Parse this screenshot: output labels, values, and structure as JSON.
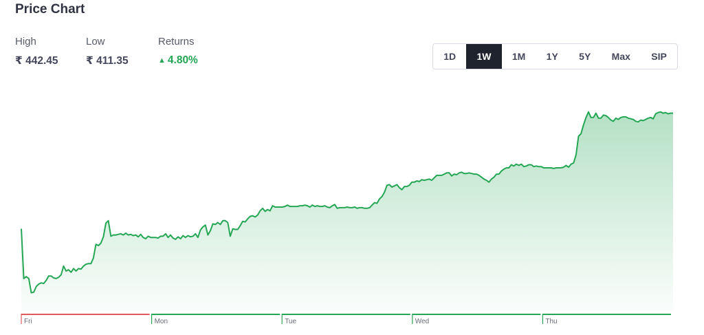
{
  "header": {
    "title": "Price Chart"
  },
  "stats": {
    "high": {
      "label": "High",
      "value": "₹ 442.45"
    },
    "low": {
      "label": "Low",
      "value": "₹ 411.35"
    },
    "returns": {
      "label": "Returns",
      "value": "4.80%",
      "direction_icon": "triangle-up-icon"
    }
  },
  "timeframes": {
    "options": [
      "1D",
      "1W",
      "1M",
      "1Y",
      "5Y",
      "Max",
      "SIP"
    ],
    "selected": "1W"
  },
  "colors": {
    "up": "#24a654",
    "down": "#e05a5a",
    "active_tab_bg": "#1f232d"
  },
  "chart_data": {
    "type": "area",
    "title": "",
    "days": [
      {
        "label": "Fri",
        "trend": "down"
      },
      {
        "label": "Mon",
        "trend": "up"
      },
      {
        "label": "Tue",
        "trend": "up"
      },
      {
        "label": "Wed",
        "trend": "up"
      },
      {
        "label": "Thu",
        "trend": "up"
      }
    ],
    "ylim": [
      411.35,
      442.45
    ],
    "series": [
      {
        "values": [
          421.8,
          413.8,
          414.1,
          413.8,
          411.5,
          411.6,
          412.5,
          412.9,
          413.1,
          413.0,
          413.5,
          414.2,
          414.2,
          413.9,
          413.8,
          414.0,
          414.4,
          415.8,
          415.0,
          415.2,
          414.8,
          415.4,
          415.0,
          415.4,
          415.3,
          415.8,
          416.1,
          416.2,
          416.2,
          417.1,
          419.3,
          419.1,
          419.5,
          420.5,
          422.7,
          423.1,
          420.6,
          420.8,
          420.8,
          420.9,
          421.0,
          420.8,
          421.1,
          420.8,
          420.9,
          420.7,
          420.8,
          420.5,
          420.9,
          420.4,
          420.2,
          420.6,
          420.4,
          420.4,
          420.4,
          420.3,
          420.6,
          420.6,
          421.0,
          420.4,
          420.8,
          420.3,
          420.1,
          420.5,
          420.2,
          420.7,
          420.4,
          420.7,
          420.5,
          420.6,
          421.0,
          420.4,
          421.6,
          422.1,
          422.4,
          420.8,
          421.5,
          422.6,
          422.5,
          422.8,
          422.5,
          423.1,
          423.1,
          422.8,
          420.6,
          421.8,
          421.7,
          421.7,
          422.3,
          423.0,
          422.9,
          423.4,
          423.8,
          423.9,
          423.7,
          424.0,
          424.7,
          425.1,
          424.6,
          424.9,
          424.7,
          425.5,
          425.3,
          425.3,
          425.3,
          425.3,
          425.4,
          425.6,
          425.4,
          425.4,
          425.4,
          425.4,
          425.5,
          425.5,
          425.6,
          425.5,
          425.3,
          425.6,
          425.4,
          425.5,
          425.4,
          425.4,
          425.5,
          425.3,
          425.2,
          425.5,
          425.7,
          425.1,
          425.2,
          425.2,
          425.2,
          425.3,
          425.2,
          425.2,
          425.3,
          425.1,
          425.2,
          425.2,
          425.1,
          425.1,
          425.2,
          425.6,
          426.0,
          425.9,
          426.6,
          427.0,
          427.7,
          428.8,
          428.9,
          428.5,
          428.7,
          428.9,
          428.4,
          428.1,
          428.6,
          428.6,
          428.8,
          429.3,
          429.3,
          429.5,
          429.4,
          429.7,
          429.6,
          429.7,
          429.8,
          429.6,
          430.0,
          430.4,
          430.4,
          430.4,
          430.6,
          430.8,
          430.8,
          430.3,
          430.6,
          430.5,
          430.8,
          430.9,
          430.7,
          430.7,
          430.8,
          430.7,
          430.6,
          430.6,
          430.4,
          430.1,
          429.8,
          429.6,
          429.3,
          429.8,
          430.1,
          430.6,
          430.6,
          431.1,
          431.4,
          431.6,
          431.6,
          432.1,
          431.9,
          432.2,
          432.0,
          432.2,
          431.8,
          431.9,
          432.1,
          432.1,
          431.8,
          431.9,
          431.8,
          431.8,
          431.6,
          431.6,
          431.6,
          431.6,
          431.5,
          431.6,
          431.6,
          431.6,
          431.7,
          432.0,
          431.7,
          432.2,
          432.4,
          433.7,
          436.7,
          437.1,
          438.5,
          439.7,
          440.6,
          439.7,
          439.7,
          440.4,
          439.6,
          439.6,
          440.1,
          440.0,
          439.7,
          439.3,
          439.1,
          439.6,
          439.4,
          439.7,
          439.8,
          439.8,
          439.6,
          439.5,
          439.4,
          439.1,
          439.0,
          439.3,
          439.2,
          439.4,
          439.6,
          439.7,
          439.5,
          440.3,
          440.5,
          440.6,
          440.4,
          440.5,
          440.3,
          440.4,
          440.4
        ]
      }
    ],
    "grid": false,
    "legend": "none"
  }
}
